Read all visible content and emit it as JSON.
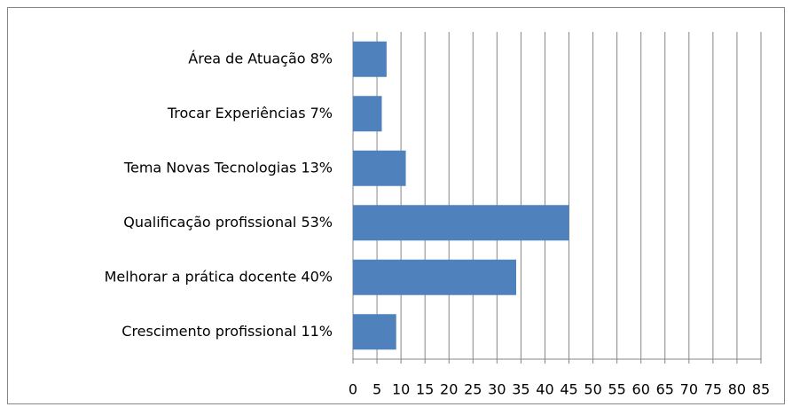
{
  "chart_data": {
    "type": "bar",
    "orientation": "horizontal",
    "categories": [
      "Área de Atuação 8%",
      "Trocar Experiências 7%",
      "Tema Novas Tecnologias 13%",
      "Qualificação profissional 53%",
      "Melhorar a prática docente  40%",
      "Crescimento profissional 11%"
    ],
    "values": [
      7,
      6,
      11,
      45,
      34,
      9
    ],
    "color": "#4f81bd",
    "xlim": [
      0,
      85
    ],
    "xticks": [
      0,
      5,
      10,
      15,
      20,
      25,
      30,
      35,
      40,
      45,
      50,
      55,
      60,
      65,
      70,
      75,
      80,
      85
    ],
    "grid": true
  }
}
